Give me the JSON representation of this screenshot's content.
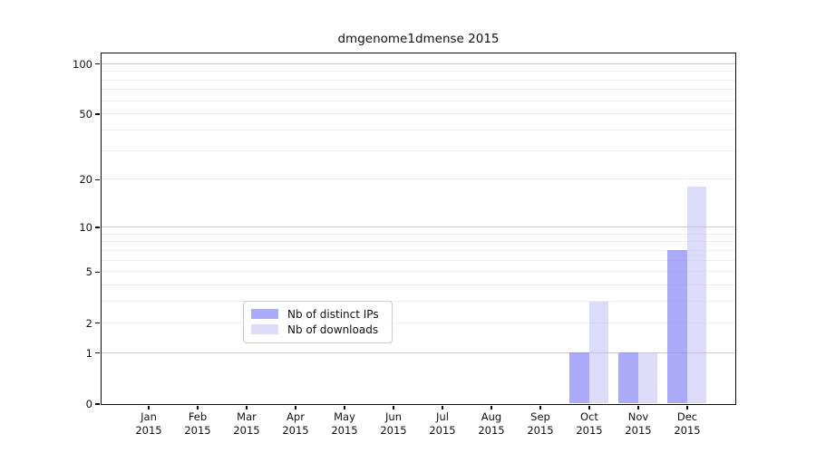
{
  "chart_data": {
    "type": "bar",
    "title": "dmgenome1dmense 2015",
    "x_axis": {
      "months": [
        "Jan",
        "Feb",
        "Mar",
        "Apr",
        "May",
        "Jun",
        "Jul",
        "Aug",
        "Sep",
        "Oct",
        "Nov",
        "Dec"
      ],
      "year": "2015"
    },
    "series": [
      {
        "name": "Nb of distinct IPs",
        "fill": "rgba(137,137,245,0.72)",
        "solid_equivalent": "#aaaaf8",
        "values": [
          0,
          0,
          0,
          0,
          0,
          0,
          0,
          0,
          0,
          1,
          1,
          7
        ]
      },
      {
        "name": "Nb of downloads",
        "fill": "rgba(191,191,242,0.55)",
        "solid_equivalent": "#dcdcf8",
        "values": [
          0,
          0,
          0,
          0,
          0,
          0,
          0,
          0,
          0,
          3,
          1,
          18
        ]
      }
    ],
    "y_axis": {
      "scale": "log1p",
      "tick_values": [
        0,
        1,
        2,
        5,
        10,
        20,
        50,
        100
      ],
      "tick_labels": [
        "0",
        "1",
        "2",
        "5",
        "10",
        "20",
        "50",
        "100"
      ],
      "range": [
        0,
        115
      ],
      "major_gridlines": [
        1,
        10,
        100
      ],
      "minor_gridlines": [
        2,
        3,
        4,
        5,
        6,
        7,
        8,
        9,
        20,
        30,
        40,
        50,
        60,
        70,
        80,
        90
      ]
    },
    "legend": {
      "location": "lower center"
    },
    "style": {
      "major_grid_color": "#c9c9c9",
      "minor_grid_color": "#ededed",
      "spine_color": "#0d0d0d",
      "text_color": "#111111",
      "grid_on": true
    }
  }
}
